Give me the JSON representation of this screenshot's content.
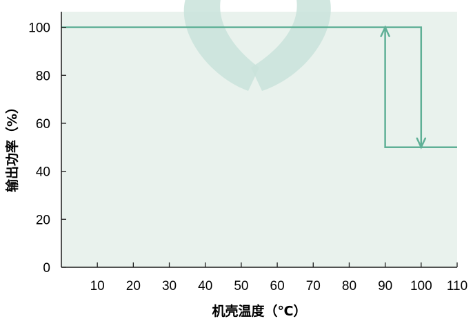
{
  "chart_data": {
    "type": "line",
    "title": "",
    "xlabel": "机壳温度（℃）",
    "ylabel": "输出功率（%）",
    "xlim": [
      0,
      110
    ],
    "ylim": [
      0,
      100
    ],
    "x_ticks": [
      10,
      20,
      30,
      40,
      50,
      60,
      70,
      80,
      90,
      100,
      110
    ],
    "y_ticks": [
      0,
      20,
      40,
      60,
      80,
      100
    ],
    "grid": false,
    "legend": "none",
    "series": [
      {
        "points": [
          {
            "x": 0,
            "y": 100
          },
          {
            "x": 100,
            "y": 100
          },
          {
            "x": 100,
            "y": 50
          }
        ]
      },
      {
        "points": [
          {
            "x": 110,
            "y": 50
          },
          {
            "x": 90,
            "y": 50
          },
          {
            "x": 90,
            "y": 100
          }
        ]
      }
    ],
    "colors": {
      "plot_background": "#e9f2ed",
      "line": "#5fb096",
      "axis": "#1a1a1a",
      "watermark": "#c9e3da"
    },
    "watermark_icon": "heart-logo-icon"
  }
}
